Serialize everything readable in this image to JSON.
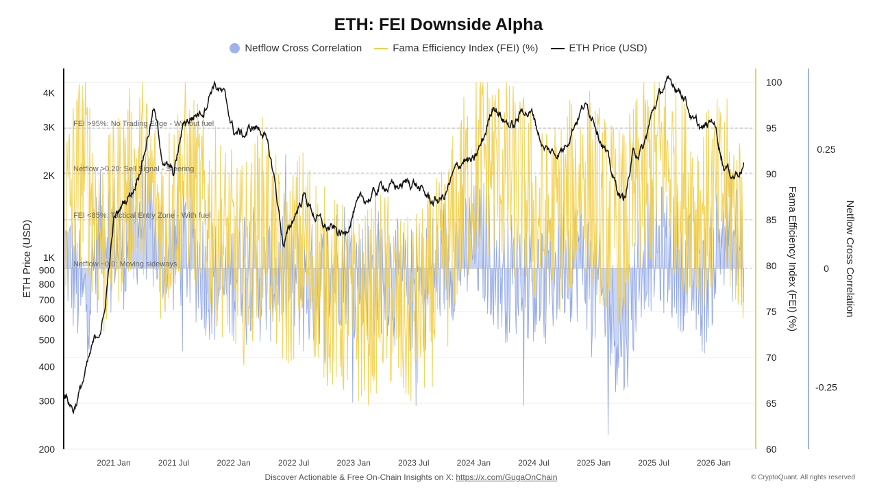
{
  "title": "ETH: FEI Downside Alpha",
  "legend": [
    {
      "name": "Netflow Cross Correlation",
      "color": "#9fb3ea",
      "shape": "dot"
    },
    {
      "name": "Fama Efficiency Index (FEI) (%)",
      "color": "#f2cf4a",
      "shape": "line"
    },
    {
      "name": "ETH Price (USD)",
      "color": "#111111",
      "shape": "line"
    }
  ],
  "footer": {
    "text": "Discover Actionable & Free On-Chain Insights on X:",
    "link": "https://x.com/GugaOnChain",
    "copyright": "© CryptoQuant. All rights reserved"
  },
  "chart_data": {
    "type": "line",
    "x_tick_labels": [
      "2021 Jan",
      "2021 Jul",
      "2022 Jan",
      "2022 Jul",
      "2023 Jan",
      "2023 Jul",
      "2024 Jan",
      "2024 Jul",
      "2025 Jan",
      "2025 Jul",
      "2026 Jan"
    ],
    "x_range": [
      "2020-08",
      "2026-05"
    ],
    "axes": {
      "left": {
        "label": "ETH Price (USD)",
        "scale": "log",
        "range": [
          200,
          4900
        ],
        "ticks": [
          {
            "v": 200,
            "t": "200"
          },
          {
            "v": 300,
            "t": "300"
          },
          {
            "v": 400,
            "t": "400"
          },
          {
            "v": 500,
            "t": "500"
          },
          {
            "v": 600,
            "t": "600"
          },
          {
            "v": 700,
            "t": "700"
          },
          {
            "v": 800,
            "t": "800"
          },
          {
            "v": 900,
            "t": "900"
          },
          {
            "v": 1000,
            "t": "1K"
          },
          {
            "v": 2000,
            "t": "2K"
          },
          {
            "v": 3000,
            "t": "3K"
          },
          {
            "v": 4000,
            "t": "4K"
          }
        ]
      },
      "right_fei": {
        "label": "Fama Efficiency Index (FEI) (%)",
        "scale": "linear",
        "range": [
          60,
          101.5
        ],
        "ticks": [
          60,
          65,
          70,
          75,
          80,
          85,
          90,
          95,
          100
        ]
      },
      "right_netflow": {
        "label": "Netflow Cross Correlation",
        "scale": "linear",
        "range": [
          -0.38,
          0.42
        ],
        "ticks": [
          {
            "v": 0.25,
            "t": "0.25"
          },
          {
            "v": 0,
            "t": "0"
          },
          {
            "v": -0.25,
            "t": "-0.25"
          }
        ]
      }
    },
    "reference_lines": [
      {
        "label": "FEI >95%: No Trading Edge - Without fuel",
        "axis": "fei",
        "value": 95
      },
      {
        "label": "Netflow >0.20: Sell Signal - Steering",
        "axis": "netflow",
        "value": 0.2
      },
      {
        "label": "FEI <85%: Tactical Entry Zone - With fuel",
        "axis": "fei",
        "value": 85
      },
      {
        "label": "Netflow ~0.0: Moving sideways",
        "axis": "netflow",
        "value": 0.0
      }
    ],
    "series": [
      {
        "name": "ETH Price (USD)",
        "axis": "left",
        "color": "#111111",
        "x": [
          "2020-08",
          "2020-09",
          "2020-10",
          "2020-11",
          "2020-12",
          "2021-01",
          "2021-02",
          "2021-03",
          "2021-04",
          "2021-05",
          "2021-06",
          "2021-07",
          "2021-08",
          "2021-09",
          "2021-10",
          "2021-11",
          "2021-12",
          "2022-01",
          "2022-02",
          "2022-03",
          "2022-04",
          "2022-05",
          "2022-06",
          "2022-07",
          "2022-08",
          "2022-09",
          "2022-10",
          "2022-11",
          "2022-12",
          "2023-01",
          "2023-02",
          "2023-03",
          "2023-04",
          "2023-05",
          "2023-06",
          "2023-07",
          "2023-08",
          "2023-09",
          "2023-10",
          "2023-11",
          "2023-12",
          "2024-01",
          "2024-02",
          "2024-03",
          "2024-04",
          "2024-05",
          "2024-06",
          "2024-07",
          "2024-08",
          "2024-09",
          "2024-10",
          "2024-11",
          "2024-12",
          "2025-01",
          "2025-02",
          "2025-03",
          "2025-04",
          "2025-05",
          "2025-06",
          "2025-07",
          "2025-08",
          "2025-09",
          "2025-10",
          "2025-11",
          "2025-12",
          "2026-01",
          "2026-02",
          "2026-03",
          "2026-04"
        ],
        "values": [
          320,
          280,
          360,
          480,
          600,
          1350,
          1600,
          1800,
          2400,
          3500,
          2200,
          2000,
          3100,
          3300,
          3500,
          4400,
          3900,
          2900,
          2800,
          3000,
          2900,
          2000,
          1100,
          1400,
          1700,
          1450,
          1300,
          1250,
          1200,
          1500,
          1600,
          1700,
          1850,
          1800,
          1850,
          1900,
          1700,
          1600,
          1650,
          2000,
          2300,
          2200,
          2700,
          3700,
          3200,
          3000,
          3500,
          3300,
          2500,
          2400,
          2500,
          3100,
          3600,
          3300,
          2600,
          1900,
          1600,
          2400,
          2500,
          3500,
          4200,
          4300,
          4000,
          3100,
          2900,
          3200,
          2200,
          2000,
          2200
        ]
      },
      {
        "name": "Fama Efficiency Index (FEI) (%)",
        "axis": "right_fei",
        "color": "#f2cf4a",
        "x": [
          "2020-08",
          "2020-10",
          "2020-12",
          "2021-02",
          "2021-04",
          "2021-06",
          "2021-08",
          "2021-10",
          "2021-12",
          "2022-02",
          "2022-04",
          "2022-06",
          "2022-08",
          "2022-10",
          "2022-12",
          "2023-02",
          "2023-04",
          "2023-06",
          "2023-08",
          "2023-10",
          "2023-12",
          "2024-02",
          "2024-04",
          "2024-06",
          "2024-08",
          "2024-10",
          "2024-12",
          "2025-02",
          "2025-04",
          "2025-06",
          "2025-08",
          "2025-10",
          "2025-12",
          "2026-02",
          "2026-04"
        ],
        "values": [
          85,
          92,
          82,
          88,
          90,
          84,
          90,
          86,
          83,
          80,
          86,
          78,
          83,
          78,
          76,
          75,
          78,
          74,
          76,
          80,
          88,
          92,
          90,
          88,
          84,
          86,
          90,
          86,
          84,
          90,
          92,
          88,
          86,
          88,
          84
        ],
        "range_min": 62,
        "range_max": 100
      },
      {
        "name": "Netflow Cross Correlation",
        "axis": "right_netflow",
        "color": "#9fb3ea",
        "x": [
          "2020-08",
          "2020-10",
          "2020-12",
          "2021-02",
          "2021-04",
          "2021-06",
          "2021-08",
          "2021-10",
          "2021-12",
          "2022-02",
          "2022-04",
          "2022-06",
          "2022-08",
          "2022-10",
          "2022-12",
          "2023-02",
          "2023-04",
          "2023-06",
          "2023-08",
          "2023-10",
          "2023-12",
          "2024-02",
          "2024-04",
          "2024-06",
          "2024-08",
          "2024-10",
          "2024-12",
          "2025-02",
          "2025-04",
          "2025-06",
          "2025-08",
          "2025-10",
          "2025-12",
          "2026-02",
          "2026-04"
        ],
        "values": [
          0.05,
          -0.08,
          0.1,
          0.05,
          0.12,
          0.03,
          0.05,
          0.0,
          -0.05,
          0.02,
          -0.03,
          0.0,
          -0.05,
          -0.02,
          0.02,
          -0.03,
          0.0,
          -0.05,
          -0.04,
          0.02,
          0.04,
          0.05,
          -0.02,
          0.0,
          -0.05,
          0.03,
          0.02,
          -0.08,
          -0.15,
          0.05,
          0.04,
          0.0,
          -0.05,
          0.1,
          0.02
        ],
        "range_min": -0.35,
        "range_max": 0.32
      }
    ],
    "grid": "horizontal"
  }
}
